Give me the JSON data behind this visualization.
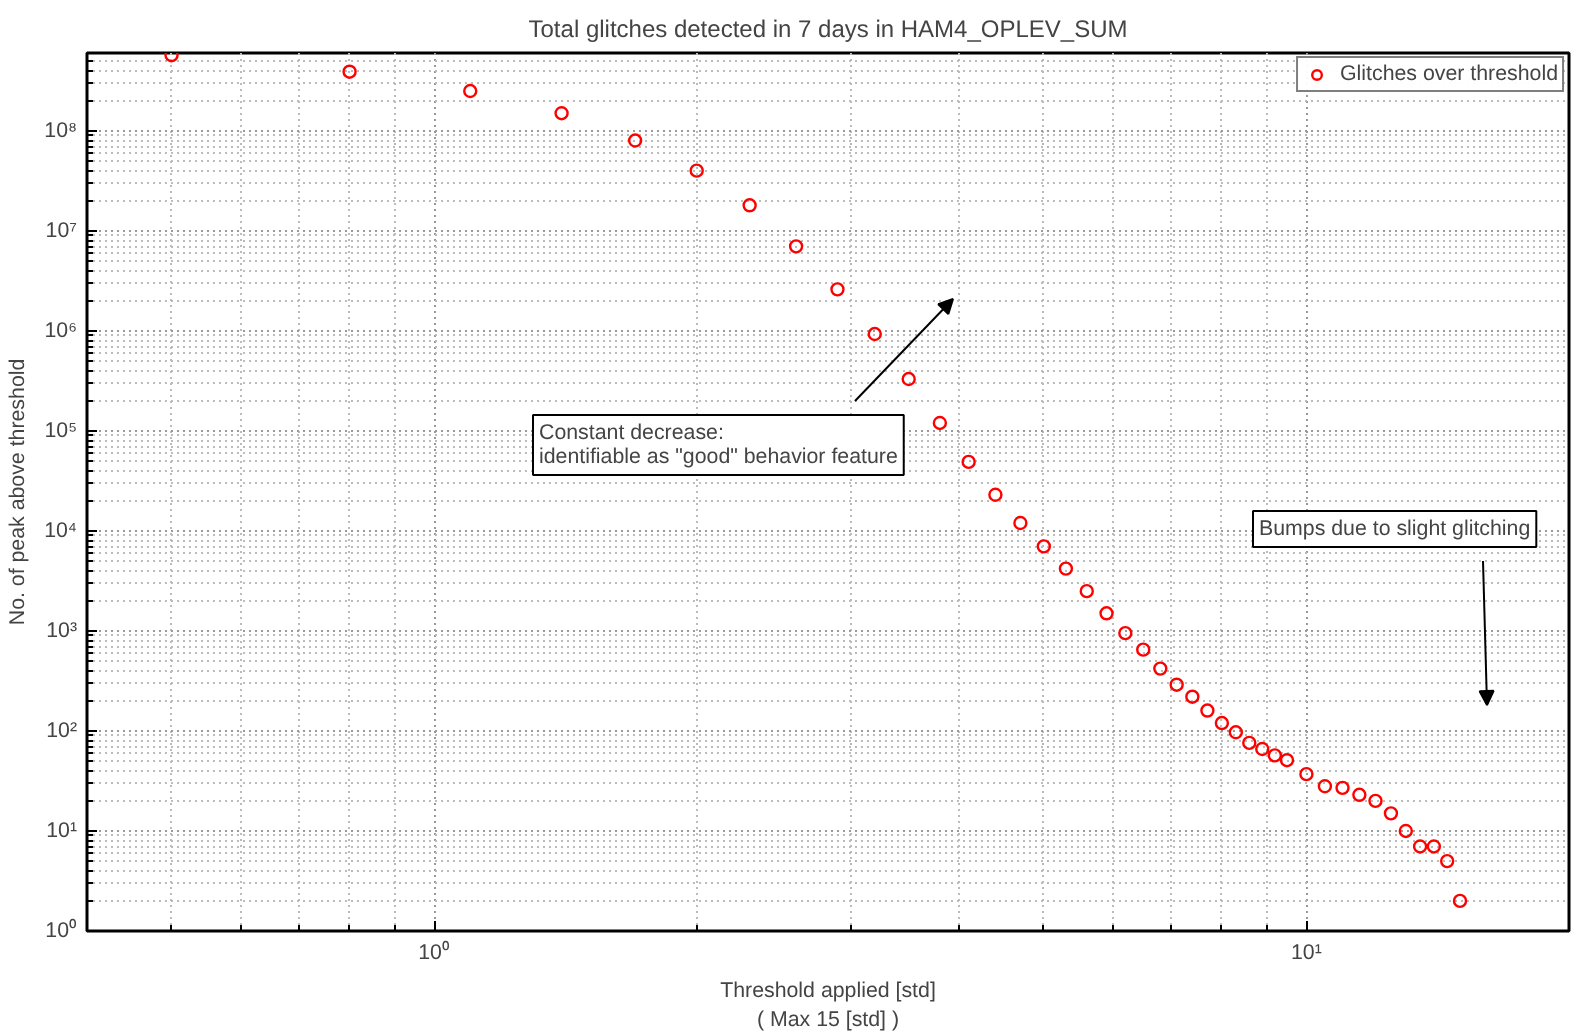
{
  "chart_data": {
    "type": "scatter",
    "title": "Total glitches detected in 7 days in HAM4_OPLEV_SUM",
    "xlabel": "Threshold applied [std]\n( Max 15 [std] )",
    "ylabel": "No. of peak above threshold",
    "x": [
      0.5,
      0.8,
      1.1,
      1.4,
      1.7,
      2.0,
      2.3,
      2.6,
      2.9,
      3.2,
      3.5,
      3.8,
      4.1,
      4.4,
      4.7,
      5.0,
      5.3,
      5.6,
      5.9,
      6.2,
      6.5,
      6.8,
      7.1,
      7.4,
      7.7,
      8.0,
      8.3,
      8.6,
      8.9,
      9.2,
      9.5,
      10.0,
      10.5,
      11.0,
      11.5,
      12.0,
      12.5,
      13.0,
      13.5,
      14.0,
      14.5,
      15.0
    ],
    "series": [
      {
        "name": "Glitches over threshold",
        "color": "#ff0000",
        "values": [
          570000000,
          390000000,
          250000000,
          150000000,
          80000000,
          40000000,
          18000000,
          7000000,
          2600000,
          930000,
          330000,
          120000,
          49000,
          23000,
          12000,
          7000,
          4200,
          2500,
          1500,
          950,
          650,
          420,
          290,
          220,
          160,
          120,
          97,
          76,
          66,
          57,
          51,
          37,
          28,
          27,
          23,
          20,
          15,
          10,
          7,
          7,
          5,
          2
        ]
      }
    ],
    "marker": "circle",
    "log": "xy",
    "xlim": [
      0.4,
      20
    ],
    "ylim": [
      1,
      600000000
    ],
    "xticks": [
      {
        "value": 1,
        "label": "10⁰"
      },
      {
        "value": 10,
        "label": "10¹"
      }
    ],
    "yticks": [
      {
        "value": 1,
        "label": "10⁰"
      },
      {
        "value": 10,
        "label": "10¹"
      },
      {
        "value": 100,
        "label": "10²"
      },
      {
        "value": 1000,
        "label": "10³"
      },
      {
        "value": 10000,
        "label": "10⁴"
      },
      {
        "value": 100000,
        "label": "10⁵"
      },
      {
        "value": 1000000,
        "label": "10⁶"
      },
      {
        "value": 10000000,
        "label": "10⁷"
      },
      {
        "value": 100000000,
        "label": "10⁸"
      }
    ],
    "grid": true,
    "legend": "top right",
    "annotations": [
      "Constant decrease:\nidentifiable as \"good\" behavior feature",
      "Bumps due to slight glitching"
    ]
  }
}
